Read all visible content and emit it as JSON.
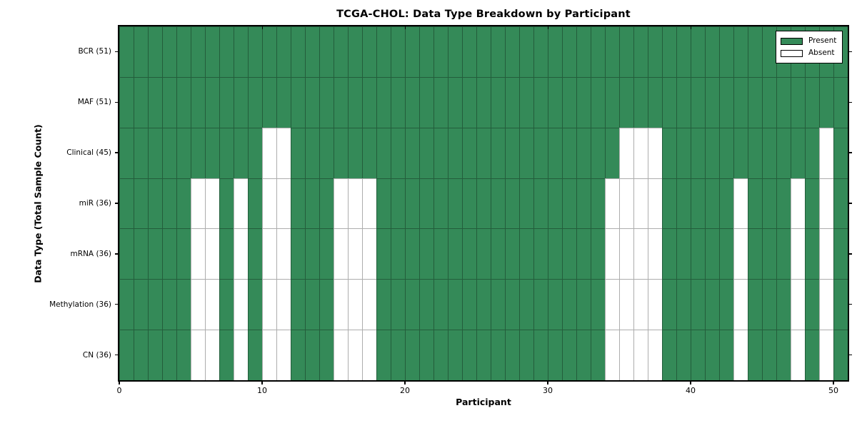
{
  "figure": {
    "title": "TCGA-CHOL: Data Type Breakdown by Participant",
    "xlabel": "Participant",
    "ylabel": "Data Type (Total Sample Count)"
  },
  "chart_data": {
    "type": "heatmap",
    "title": "TCGA-CHOL: Data Type Breakdown by Participant",
    "xlabel": "Participant",
    "ylabel": "Data Type (Total Sample Count)",
    "n_participants": 51,
    "x_ticks": [
      0,
      10,
      20,
      30,
      40,
      50
    ],
    "grid": true,
    "legend_position": "upper right",
    "colors": {
      "present": "#348a58",
      "absent": "#ffffff",
      "cell_edge": "rgba(0,0,0,0.32)",
      "frame": "#000000"
    },
    "legend": [
      {
        "label": "Present",
        "color": "#348a58"
      },
      {
        "label": "Absent",
        "color": "#ffffff"
      }
    ],
    "rows": [
      {
        "label": "BCR (51)",
        "name": "BCR",
        "total": 51,
        "absent": []
      },
      {
        "label": "MAF (51)",
        "name": "MAF",
        "total": 51,
        "absent": []
      },
      {
        "label": "Clinical (45)",
        "name": "Clinical",
        "total": 45,
        "absent": [
          10,
          11,
          35,
          36,
          37,
          49
        ]
      },
      {
        "label": "miR (36)",
        "name": "miR",
        "total": 36,
        "absent": [
          5,
          6,
          8,
          10,
          11,
          15,
          16,
          17,
          34,
          35,
          36,
          37,
          43,
          47,
          49
        ]
      },
      {
        "label": "mRNA (36)",
        "name": "mRNA",
        "total": 36,
        "absent": [
          5,
          6,
          8,
          10,
          11,
          15,
          16,
          17,
          34,
          35,
          36,
          37,
          43,
          47,
          49
        ]
      },
      {
        "label": "Methylation (36)",
        "name": "Methylation",
        "total": 36,
        "absent": [
          5,
          6,
          8,
          10,
          11,
          15,
          16,
          17,
          34,
          35,
          36,
          37,
          43,
          47,
          49
        ]
      },
      {
        "label": "CN (36)",
        "name": "CN",
        "total": 36,
        "absent": [
          5,
          6,
          8,
          10,
          11,
          15,
          16,
          17,
          34,
          35,
          36,
          37,
          43,
          47,
          49
        ]
      }
    ]
  }
}
